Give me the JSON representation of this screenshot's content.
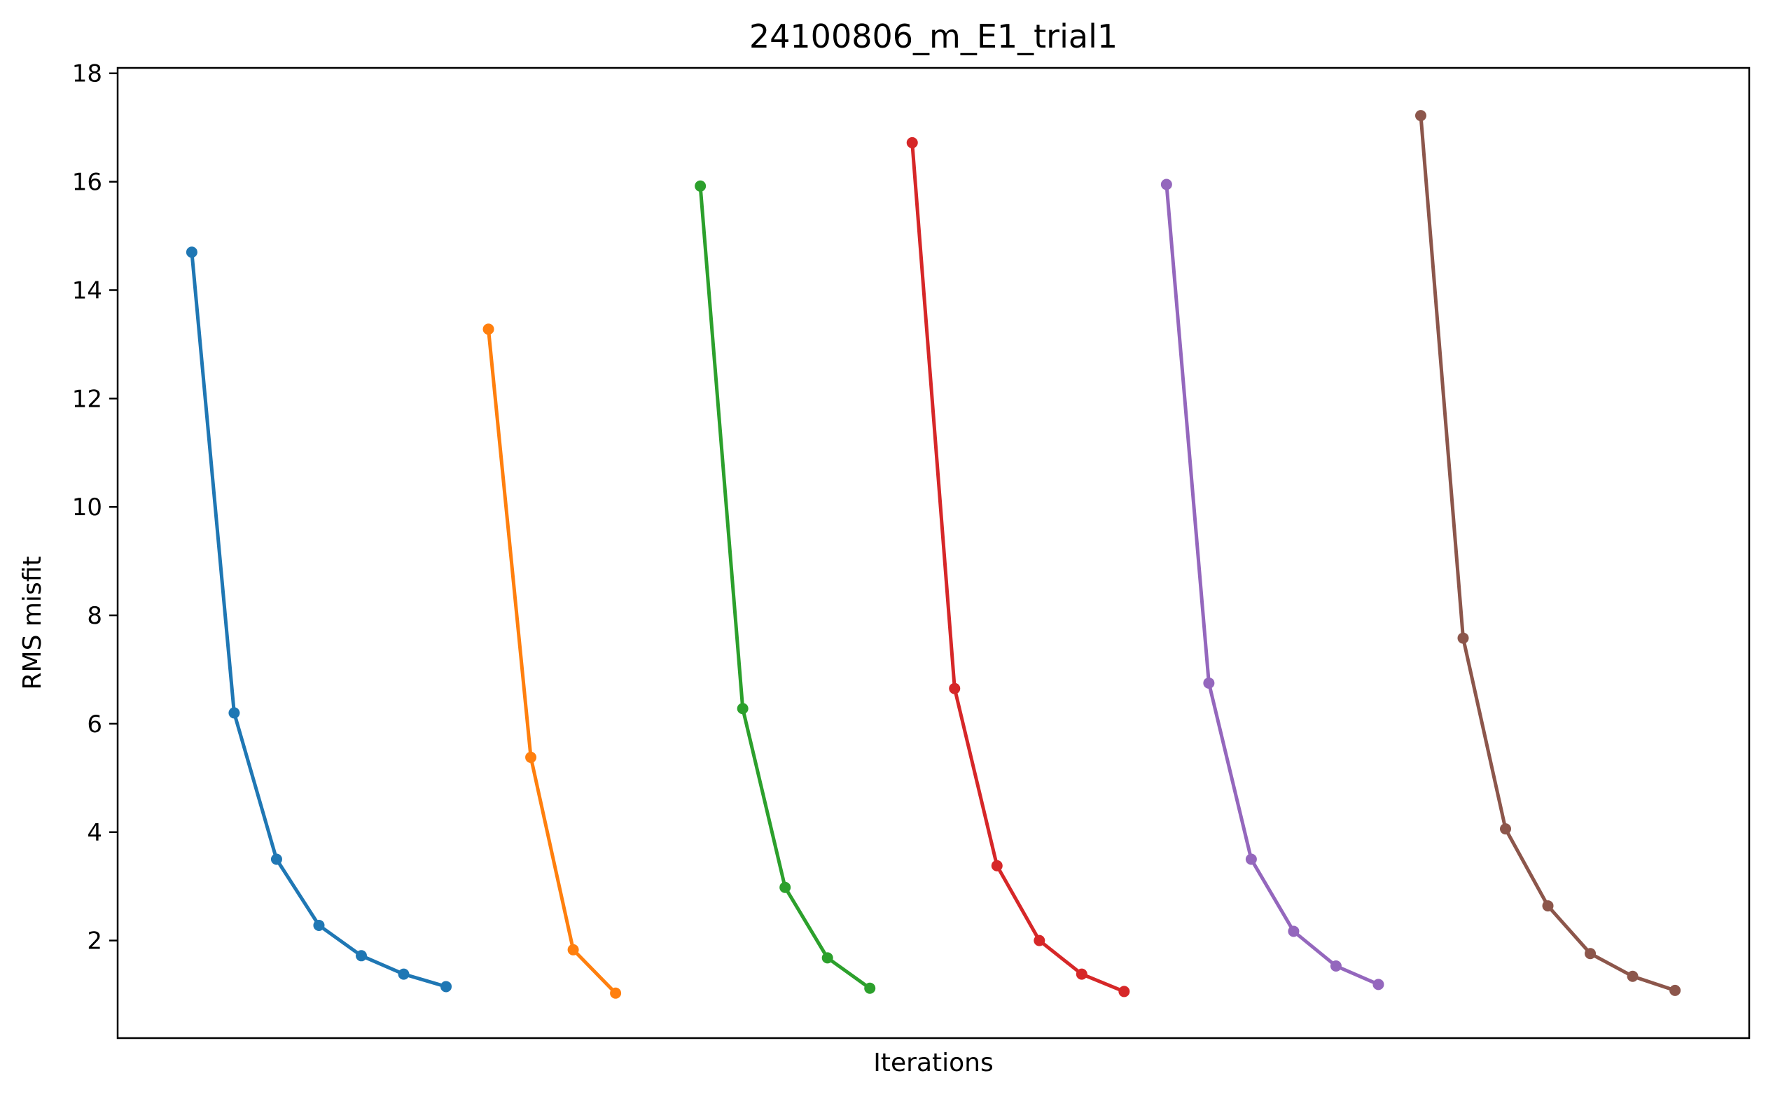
{
  "chart_data": {
    "type": "line",
    "title": "24100806_m_E1_trial1",
    "xlabel": "Iterations",
    "ylabel": "RMS misfit",
    "ylim": [
      0.2,
      18.1
    ],
    "yticks": [
      2,
      4,
      6,
      8,
      10,
      12,
      14,
      16,
      18
    ],
    "xticks_visible": false,
    "grid": false,
    "legend": "none",
    "series": [
      {
        "color": "#1f77b4",
        "x": [
          1,
          2,
          3,
          4,
          5,
          6,
          7
        ],
        "values": [
          14.7,
          6.2,
          3.5,
          2.28,
          1.72,
          1.38,
          1.15
        ]
      },
      {
        "color": "#ff7f0e",
        "x": [
          8,
          9,
          10,
          11
        ],
        "values": [
          13.28,
          5.38,
          1.83,
          1.03
        ]
      },
      {
        "color": "#2ca02c",
        "x": [
          13,
          14,
          15,
          16,
          17
        ],
        "values": [
          15.92,
          6.28,
          2.98,
          1.68,
          1.12
        ]
      },
      {
        "color": "#d62728",
        "x": [
          18,
          19,
          20,
          21,
          22,
          23
        ],
        "values": [
          16.72,
          6.65,
          3.38,
          2.0,
          1.38,
          1.06
        ]
      },
      {
        "color": "#9467bd",
        "x": [
          24,
          25,
          26,
          27,
          28,
          29
        ],
        "values": [
          15.95,
          6.75,
          3.5,
          2.17,
          1.53,
          1.19
        ]
      },
      {
        "color": "#8c564b",
        "x": [
          30,
          31,
          32,
          33,
          34,
          35,
          36
        ],
        "values": [
          17.22,
          7.58,
          4.06,
          2.64,
          1.76,
          1.34,
          1.08
        ]
      }
    ]
  }
}
